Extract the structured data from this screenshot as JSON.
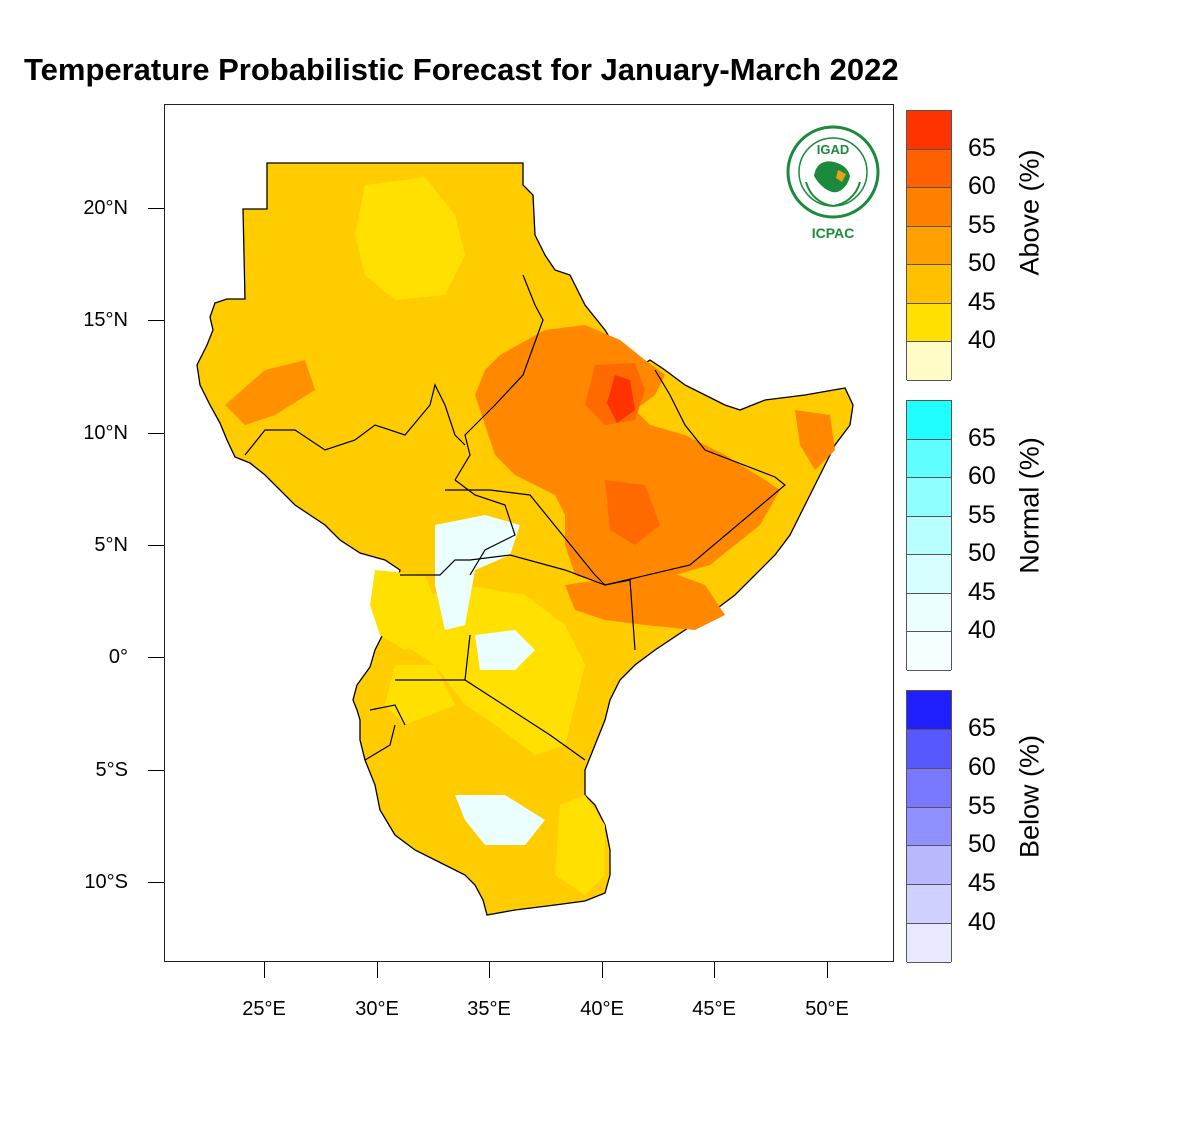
{
  "title": "Temperature Probabilistic Forecast for January-March 2022",
  "logo": {
    "top_text": "IGAD",
    "bottom_text": "ICPAC",
    "icon": "igad-icpac-logo",
    "color": "#1b8a3c"
  },
  "axes": {
    "y_labels": [
      "20°N",
      "15°N",
      "10°N",
      "5°N",
      "0°",
      "5°S",
      "10°S"
    ],
    "x_labels": [
      "25°E",
      "30°E",
      "35°E",
      "40°E",
      "45°E",
      "50°E"
    ]
  },
  "colorbars": [
    {
      "title": "Above (%)",
      "labels": [
        "65",
        "60",
        "55",
        "50",
        "45",
        "40"
      ],
      "colors": [
        "#ff3300",
        "#ff6000",
        "#ff8000",
        "#ffa000",
        "#ffc000",
        "#ffe000",
        "#fffcc8"
      ]
    },
    {
      "title": "Normal (%)",
      "labels": [
        "65",
        "60",
        "55",
        "50",
        "45",
        "40"
      ],
      "colors": [
        "#20ffff",
        "#60ffff",
        "#90ffff",
        "#b8ffff",
        "#d8ffff",
        "#ecffff",
        "#f5ffff"
      ]
    },
    {
      "title": "Below (%)",
      "labels": [
        "65",
        "60",
        "55",
        "50",
        "45",
        "40"
      ],
      "colors": [
        "#2020ff",
        "#5858ff",
        "#7878ff",
        "#9090ff",
        "#b8b8ff",
        "#d0d0ff",
        "#e8e8ff"
      ]
    }
  ]
}
